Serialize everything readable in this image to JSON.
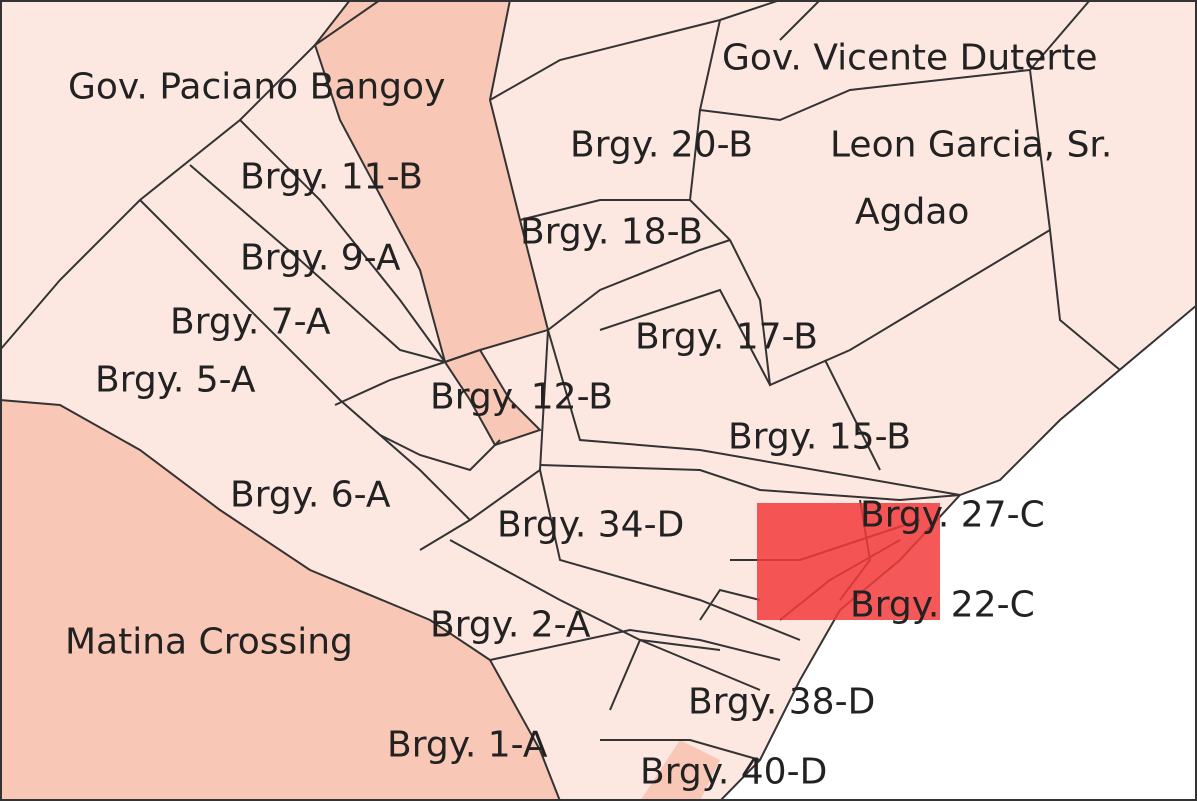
{
  "labels": [
    "Gov. Paciano Bangoy",
    "Gov. Vicente Duterte",
    "Brgy. 20-B",
    "Leon Garcia, Sr.",
    "Brgy. 11-B",
    "Agdao",
    "Brgy. 18-B",
    "Brgy. 9-A",
    "Brgy. 7-A",
    "Brgy. 17-B",
    "Brgy. 5-A",
    "Brgy. 12-B",
    "Brgy. 15-B",
    "Brgy. 6-A",
    "Brgy. 27-C",
    "Brgy. 34-D",
    "Brgy. 22-C",
    "Brgy. 2-A",
    "Matina Crossing",
    "Brgy. 38-D",
    "Brgy. 1-A",
    "Brgy. 40-D"
  ]
}
